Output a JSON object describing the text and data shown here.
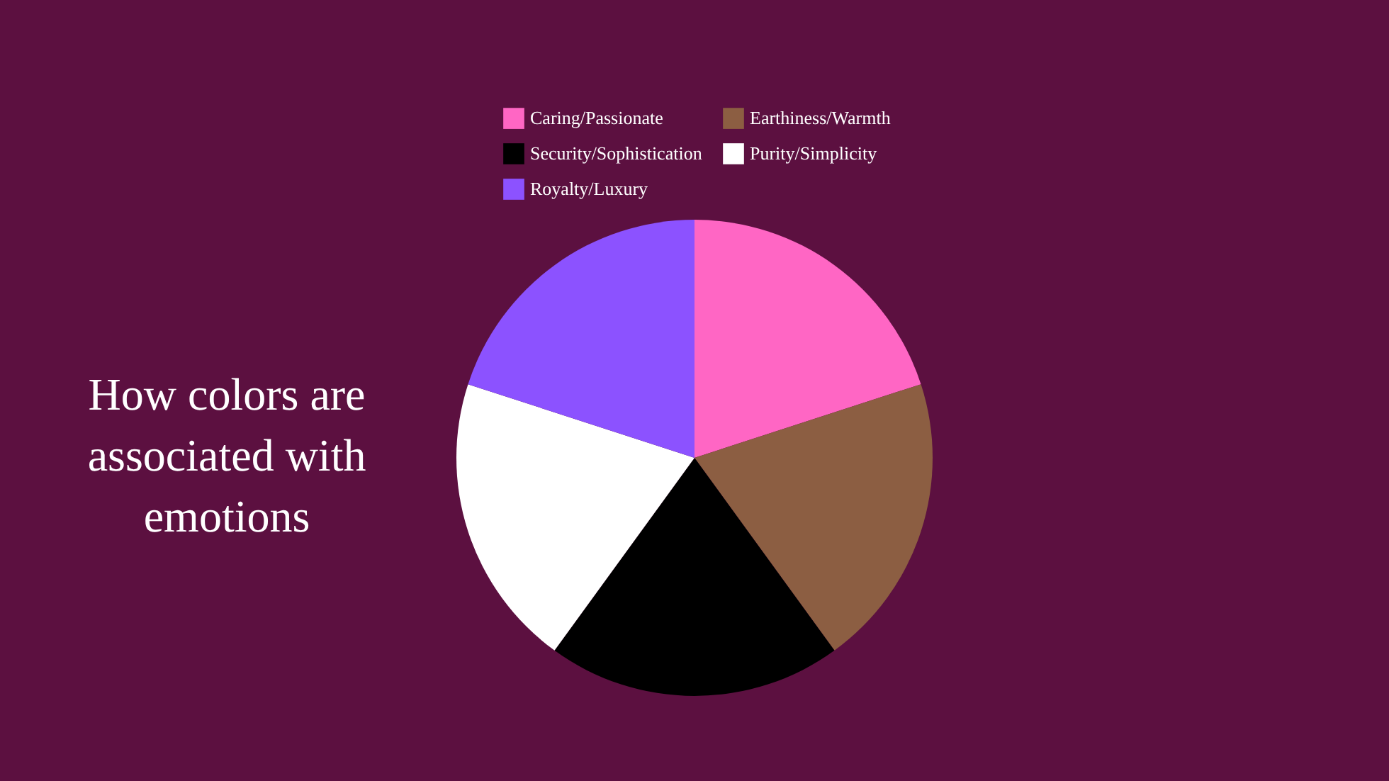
{
  "chart_data": {
    "type": "pie",
    "title": "How colors are associated with emotions",
    "categories": [
      "Caring/Passionate",
      "Earthiness/Warmth",
      "Security/Sophistication",
      "Purity/Simplicity",
      "Royalty/Luxury"
    ],
    "values": [
      20,
      20,
      20,
      20,
      20
    ],
    "colors": [
      "#ff66c4",
      "#8c5e42",
      "#000000",
      "#ffffff",
      "#8c52ff"
    ],
    "legend": "top"
  }
}
